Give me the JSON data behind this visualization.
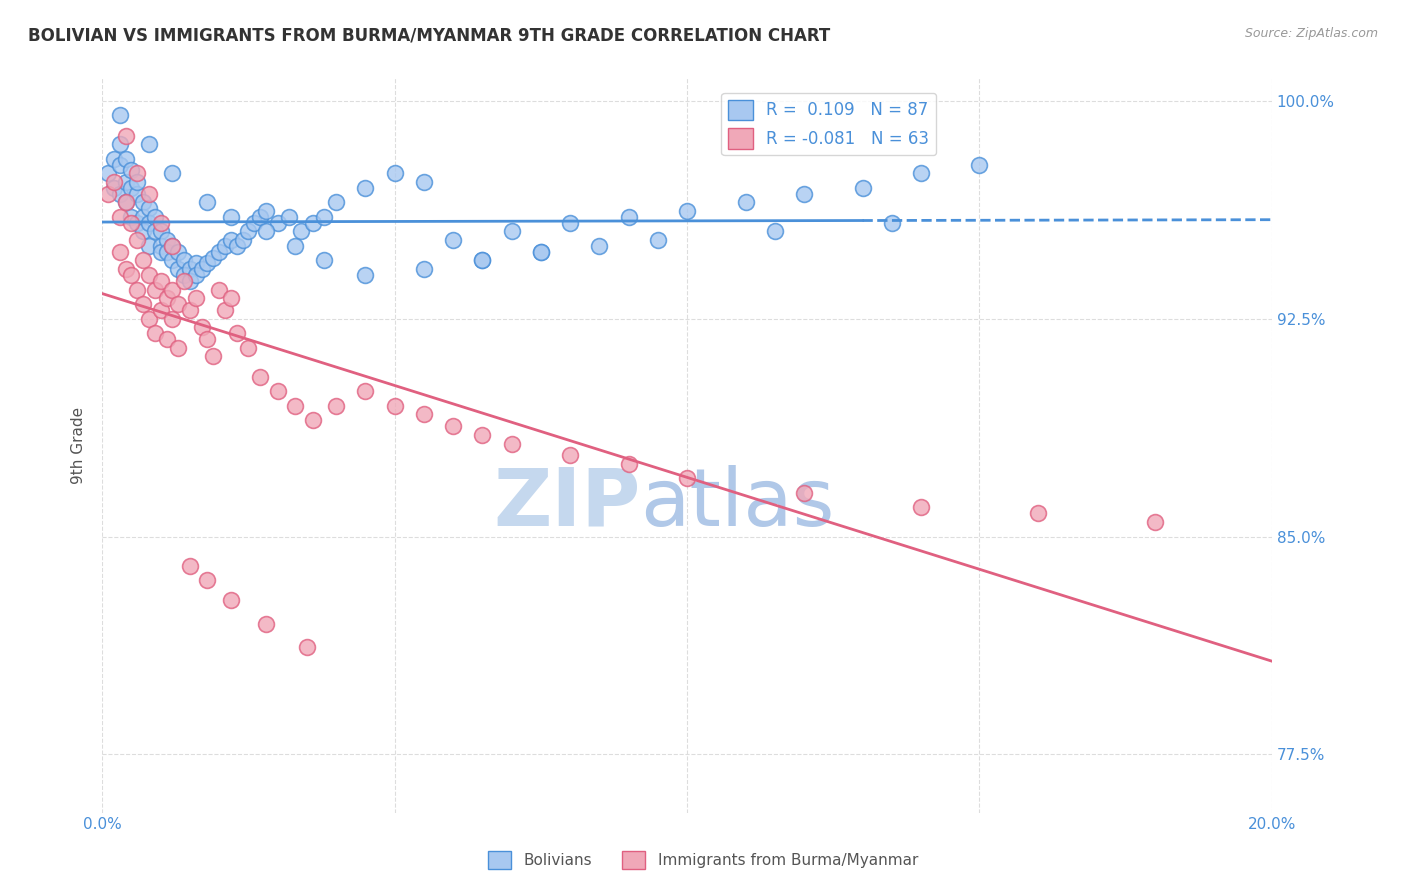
{
  "title": "BOLIVIAN VS IMMIGRANTS FROM BURMA/MYANMAR 9TH GRADE CORRELATION CHART",
  "source": "Source: ZipAtlas.com",
  "ylabel": "9th Grade",
  "ytick_labels": [
    "77.5%",
    "85.0%",
    "92.5%",
    "100.0%"
  ],
  "ytick_values": [
    0.775,
    0.85,
    0.925,
    1.0
  ],
  "xmin": 0.0,
  "xmax": 0.2,
  "ymin": 0.755,
  "ymax": 1.008,
  "legend_label1": "Bolivians",
  "legend_label2": "Immigrants from Burma/Myanmar",
  "R1": 0.109,
  "N1": 87,
  "R2": -0.081,
  "N2": 63,
  "color_blue": "#a8c8f0",
  "color_pink": "#f0a8b8",
  "color_blue_line": "#4a90d9",
  "color_pink_line": "#e06080",
  "color_axis_label": "#4a90d9",
  "blue_scatter_x": [
    0.001,
    0.002,
    0.002,
    0.003,
    0.003,
    0.003,
    0.004,
    0.004,
    0.004,
    0.005,
    0.005,
    0.005,
    0.006,
    0.006,
    0.006,
    0.007,
    0.007,
    0.007,
    0.008,
    0.008,
    0.008,
    0.009,
    0.009,
    0.01,
    0.01,
    0.01,
    0.011,
    0.011,
    0.012,
    0.012,
    0.013,
    0.013,
    0.014,
    0.014,
    0.015,
    0.015,
    0.016,
    0.016,
    0.017,
    0.018,
    0.019,
    0.02,
    0.021,
    0.022,
    0.023,
    0.024,
    0.025,
    0.026,
    0.027,
    0.028,
    0.03,
    0.032,
    0.034,
    0.036,
    0.038,
    0.04,
    0.045,
    0.05,
    0.055,
    0.06,
    0.065,
    0.07,
    0.075,
    0.08,
    0.09,
    0.1,
    0.11,
    0.12,
    0.13,
    0.14,
    0.15,
    0.003,
    0.008,
    0.012,
    0.018,
    0.022,
    0.028,
    0.033,
    0.038,
    0.045,
    0.055,
    0.065,
    0.075,
    0.085,
    0.095,
    0.115,
    0.135
  ],
  "blue_scatter_y": [
    0.975,
    0.98,
    0.97,
    0.985,
    0.978,
    0.968,
    0.98,
    0.972,
    0.965,
    0.976,
    0.97,
    0.96,
    0.968,
    0.972,
    0.958,
    0.965,
    0.96,
    0.955,
    0.963,
    0.958,
    0.95,
    0.96,
    0.955,
    0.955,
    0.95,
    0.948,
    0.952,
    0.948,
    0.95,
    0.945,
    0.948,
    0.942,
    0.945,
    0.94,
    0.942,
    0.938,
    0.944,
    0.94,
    0.942,
    0.944,
    0.946,
    0.948,
    0.95,
    0.952,
    0.95,
    0.952,
    0.955,
    0.958,
    0.96,
    0.962,
    0.958,
    0.96,
    0.955,
    0.958,
    0.96,
    0.965,
    0.97,
    0.975,
    0.972,
    0.952,
    0.945,
    0.955,
    0.948,
    0.958,
    0.96,
    0.962,
    0.965,
    0.968,
    0.97,
    0.975,
    0.978,
    0.995,
    0.985,
    0.975,
    0.965,
    0.96,
    0.955,
    0.95,
    0.945,
    0.94,
    0.942,
    0.945,
    0.948,
    0.95,
    0.952,
    0.955,
    0.958
  ],
  "pink_scatter_x": [
    0.001,
    0.002,
    0.003,
    0.003,
    0.004,
    0.004,
    0.005,
    0.005,
    0.006,
    0.006,
    0.007,
    0.007,
    0.008,
    0.008,
    0.009,
    0.009,
    0.01,
    0.01,
    0.011,
    0.011,
    0.012,
    0.012,
    0.013,
    0.013,
    0.014,
    0.015,
    0.016,
    0.017,
    0.018,
    0.019,
    0.02,
    0.021,
    0.022,
    0.023,
    0.025,
    0.027,
    0.03,
    0.033,
    0.036,
    0.04,
    0.045,
    0.05,
    0.055,
    0.06,
    0.065,
    0.07,
    0.08,
    0.09,
    0.1,
    0.12,
    0.14,
    0.16,
    0.18,
    0.004,
    0.006,
    0.008,
    0.01,
    0.012,
    0.015,
    0.018,
    0.022,
    0.028,
    0.035
  ],
  "pink_scatter_y": [
    0.968,
    0.972,
    0.96,
    0.948,
    0.965,
    0.942,
    0.958,
    0.94,
    0.952,
    0.935,
    0.945,
    0.93,
    0.94,
    0.925,
    0.935,
    0.92,
    0.938,
    0.928,
    0.932,
    0.918,
    0.935,
    0.925,
    0.93,
    0.915,
    0.938,
    0.928,
    0.932,
    0.922,
    0.918,
    0.912,
    0.935,
    0.928,
    0.932,
    0.92,
    0.915,
    0.905,
    0.9,
    0.895,
    0.89,
    0.895,
    0.9,
    0.895,
    0.892,
    0.888,
    0.885,
    0.882,
    0.878,
    0.875,
    0.87,
    0.865,
    0.86,
    0.858,
    0.855,
    0.988,
    0.975,
    0.968,
    0.958,
    0.95,
    0.84,
    0.835,
    0.828,
    0.82,
    0.812
  ]
}
